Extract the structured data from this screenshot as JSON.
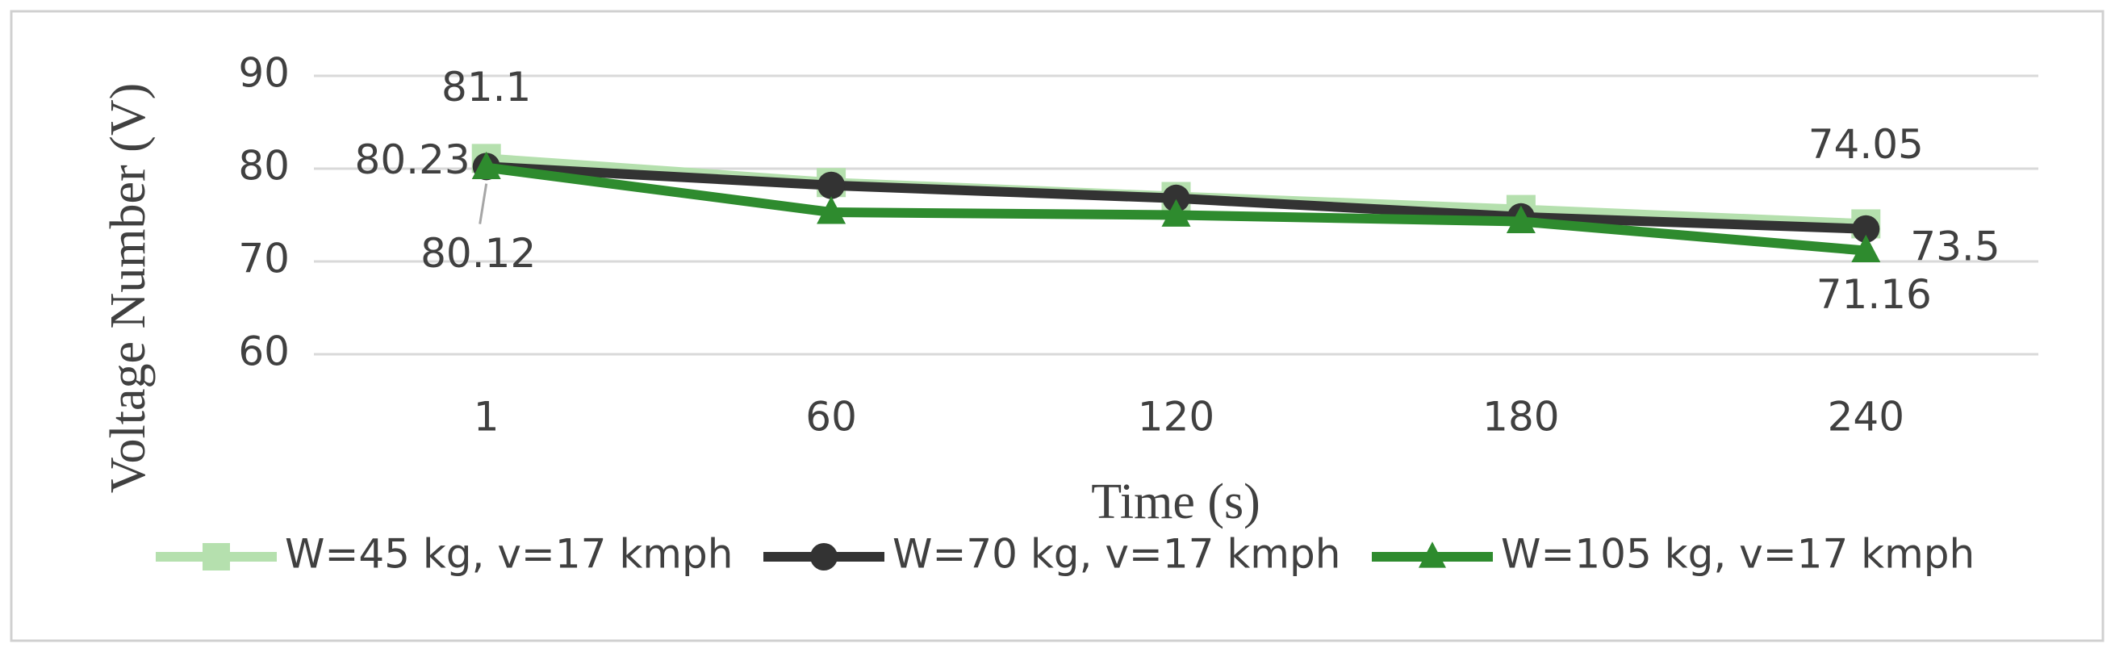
{
  "chart_data": {
    "type": "line",
    "x_label": "Time (s)",
    "y_label": "Voltage Number (V)",
    "categories": [
      "1",
      "60",
      "120",
      "180",
      "240"
    ],
    "series": [
      {
        "name": "W=45 kg, v=17 kmph",
        "color": "#b5e0ae",
        "marker": "square",
        "values": [
          81.1,
          78.5,
          77.0,
          75.6,
          74.05
        ]
      },
      {
        "name": "W=70 kg, v=17 kmph",
        "color": "#333333",
        "marker": "circle",
        "values": [
          80.23,
          78.2,
          76.8,
          74.8,
          73.5
        ]
      },
      {
        "name": "W=105 kg, v=17 kmph",
        "color": "#2e8b2e",
        "marker": "triangle",
        "values": [
          80.12,
          75.3,
          75.0,
          74.3,
          71.16
        ]
      }
    ],
    "data_label_indices": [
      0,
      4
    ],
    "ylim": [
      60,
      90
    ],
    "yticks": [
      60,
      70,
      80,
      90
    ],
    "grid": true,
    "legend": "bottom"
  }
}
